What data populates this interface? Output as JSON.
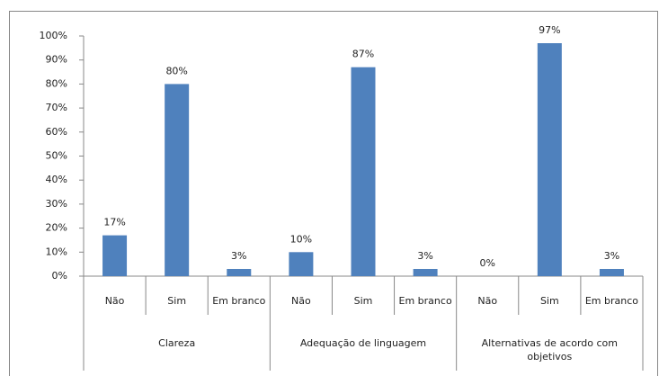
{
  "chart_data": {
    "type": "bar",
    "categories": [
      "Não",
      "Sim",
      "Em branco",
      "Não",
      "Sim",
      "Em branco",
      "Não",
      "Sim",
      "Em branco"
    ],
    "groups": [
      "Clareza",
      "Adequação de linguagem",
      "Alternativas de acordo com objetivos"
    ],
    "values": [
      17,
      80,
      3,
      10,
      87,
      3,
      0,
      97,
      3
    ],
    "value_labels": [
      "17%",
      "80%",
      "3%",
      "10%",
      "87%",
      "3%",
      "0%",
      "97%",
      "3%"
    ],
    "color": "#4f81bd",
    "ylim": [
      0,
      100
    ],
    "yticks": [
      {
        "value": 0,
        "label": "0%"
      },
      {
        "value": 10,
        "label": "10%"
      },
      {
        "value": 20,
        "label": "20%"
      },
      {
        "value": 30,
        "label": "30%"
      },
      {
        "value": 40,
        "label": "40%"
      },
      {
        "value": 50,
        "label": "50%"
      },
      {
        "value": 60,
        "label": "60%"
      },
      {
        "value": 70,
        "label": "70%"
      },
      {
        "value": 80,
        "label": "80%"
      },
      {
        "value": 90,
        "label": "90%"
      },
      {
        "value": 100,
        "label": "100%"
      }
    ],
    "grid": false
  }
}
